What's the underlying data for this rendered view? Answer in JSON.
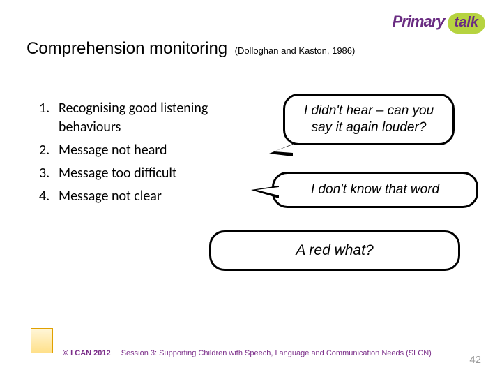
{
  "logo": {
    "primary_text": "Primary",
    "primary_color": "#6a2c82",
    "primary_fontsize": 22,
    "talk_text": "talk",
    "talk_bg": "#b6d340",
    "talk_color": "#6a2c82",
    "talk_fontsize": 20
  },
  "title": {
    "main": "Comprehension monitoring",
    "citation": "(Dolloghan and Kaston, 1986)",
    "color": "#000000"
  },
  "list": {
    "items": [
      "Recognising good listening behaviours",
      "Message not heard",
      "Message too difficult",
      "Message not clear"
    ],
    "text_color": "#000000"
  },
  "bubbles": {
    "b1": "I didn't hear – can you say it again louder?",
    "b2": "I don't know that word",
    "b3": "A red what?",
    "border_color": "#000000",
    "text_color": "#000000"
  },
  "footer": {
    "rule_color": "#7c2f8a",
    "copyright": "© I CAN 2012",
    "session": "Session 3: Supporting Children with Speech, Language and Communication Needs (SLCN)",
    "text_color": "#7c2f8a",
    "page_number": "42",
    "page_color": "#9a9a9a"
  }
}
